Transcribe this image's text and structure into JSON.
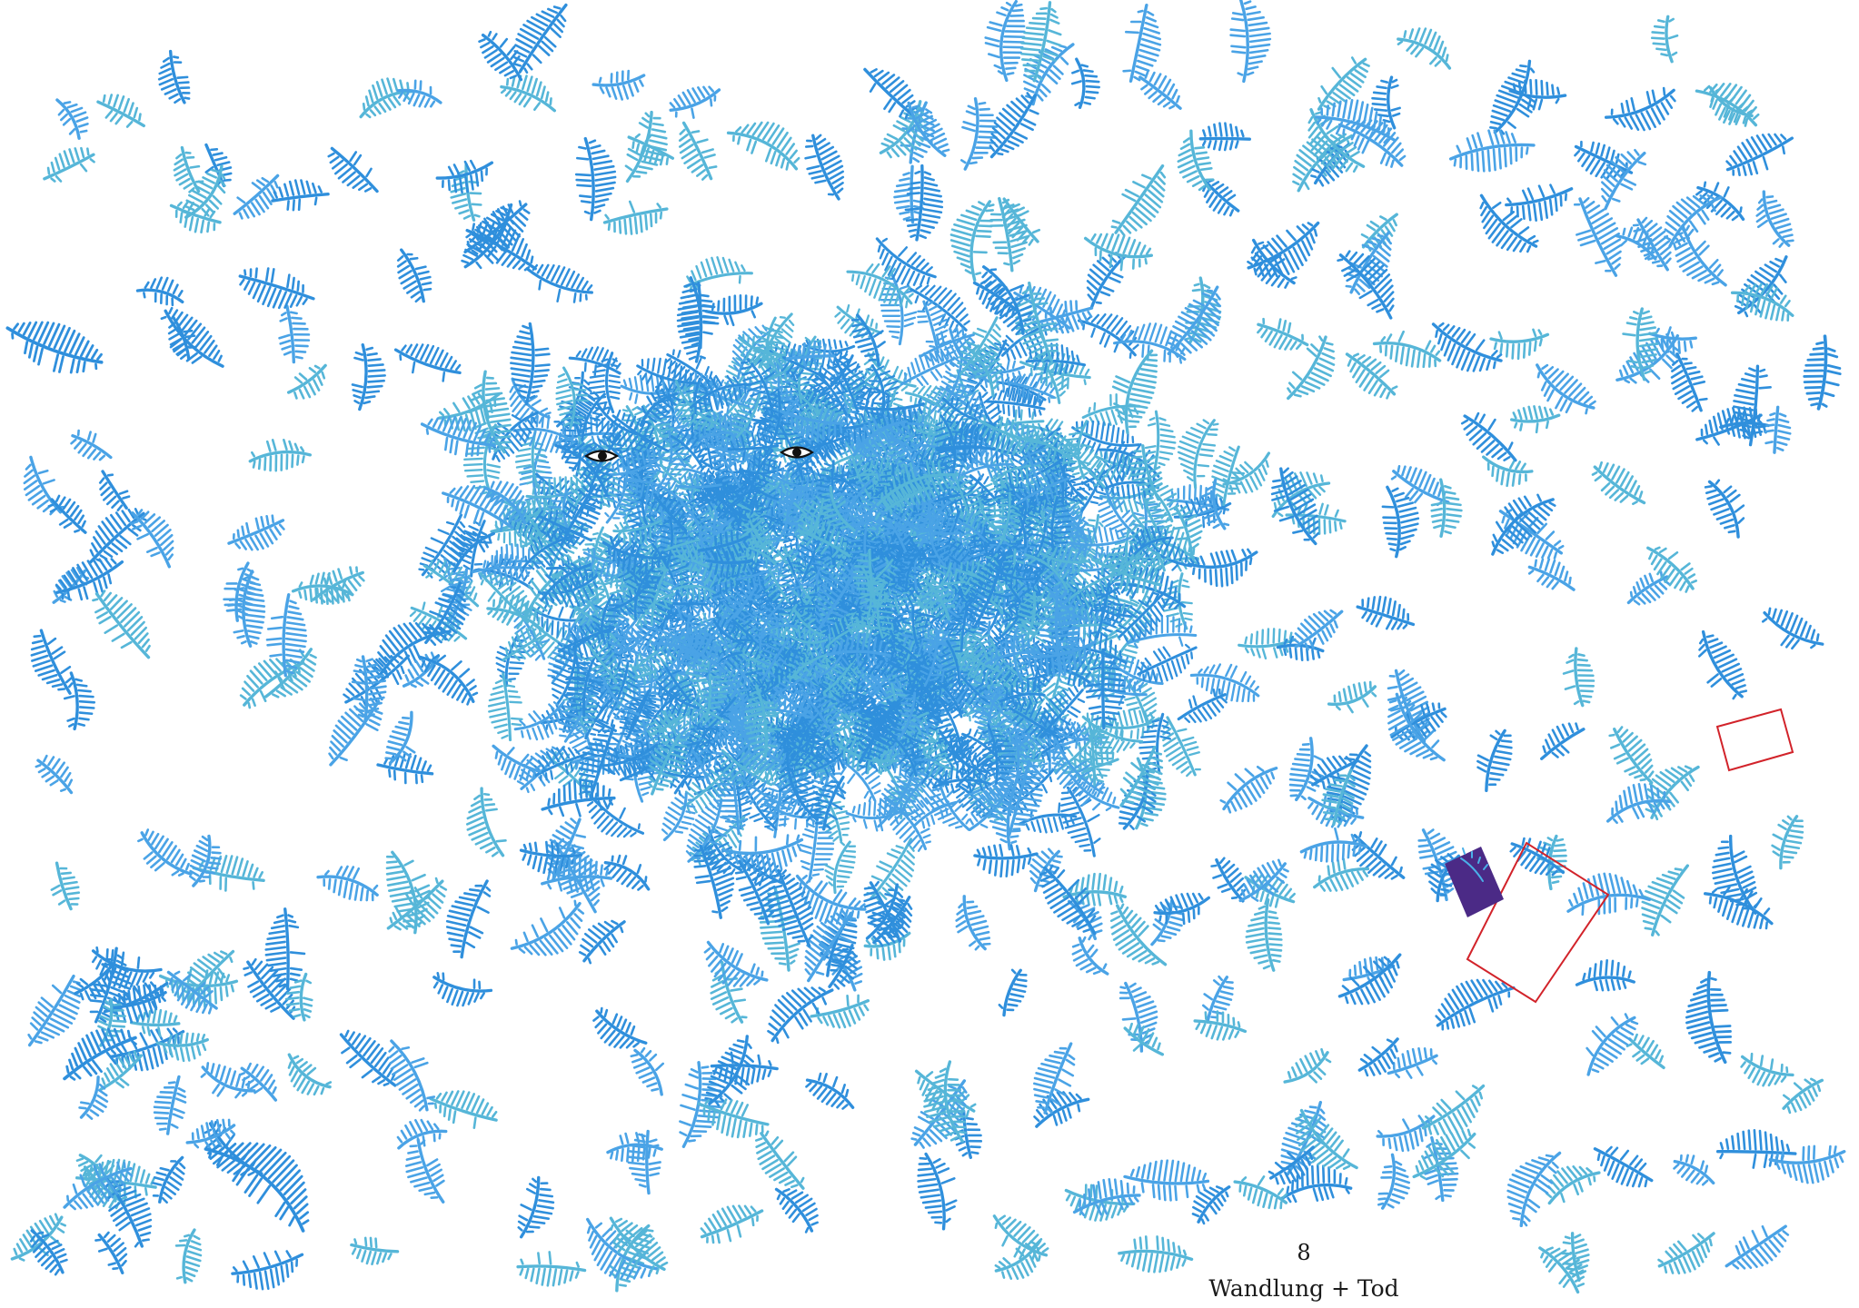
{
  "artwork": {
    "feather_color_primary": "#2f8fdc",
    "feather_color_secondary": "#4aa3e6",
    "feather_color_tertiary": "#56b6d8",
    "eye_color": "#111111",
    "frame_color": "#d2232a",
    "book_color": "#4b2a86",
    "book_text_color": "#4ab0e8"
  },
  "caption": {
    "page_number": "8",
    "title": "Wandlung + Tod"
  }
}
